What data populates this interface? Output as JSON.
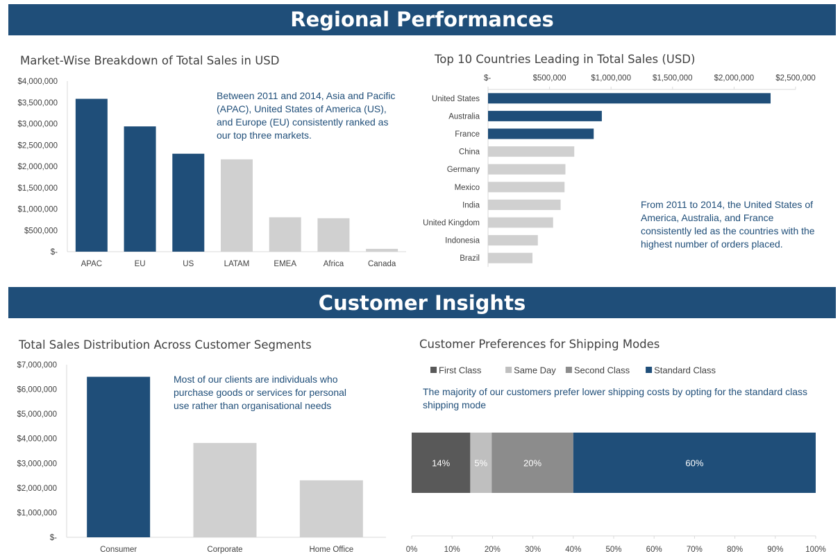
{
  "sections": {
    "regional": "Regional Performances",
    "customer": "Customer Insights"
  },
  "colors": {
    "highlight": "#1f4e79",
    "muted": "#d0d0d0",
    "first_class": "#595959",
    "same_day": "#bfbfbf",
    "second_class": "#8c8c8c",
    "standard_class": "#1f4e79"
  },
  "chart_data": [
    {
      "id": "market",
      "type": "bar",
      "title": "Market-Wise Breakdown of Total Sales in USD",
      "categories": [
        "APAC",
        "EU",
        "US",
        "LATAM",
        "EMEA",
        "Africa",
        "Canada"
      ],
      "values": [
        3585000,
        2938000,
        2297000,
        2165000,
        806000,
        784000,
        66000
      ],
      "highlighted": [
        true,
        true,
        true,
        false,
        false,
        false,
        false
      ],
      "ylim": [
        0,
        4000000
      ],
      "yticks": [
        "$-",
        "$500,000",
        "$1,000,000",
        "$1,500,000",
        "$2,000,000",
        "$2,500,000",
        "$3,000,000",
        "$3,500,000",
        "$4,000,000"
      ],
      "annotation": "Between 2011 and 2014, Asia and Pacific (APAC), United States of America (US), and Europe (EU) consistently ranked as our top three markets."
    },
    {
      "id": "countries",
      "type": "bar",
      "orientation": "horizontal",
      "title": "Top 10 Countries Leading in Total Sales (USD)",
      "categories": [
        "United States",
        "Australia",
        "France",
        "China",
        "Germany",
        "Mexico",
        "India",
        "United Kingdom",
        "Indonesia",
        "Brazil"
      ],
      "values": [
        2297000,
        925000,
        859000,
        701000,
        629000,
        622000,
        590000,
        529000,
        405000,
        361000
      ],
      "highlighted": [
        true,
        true,
        true,
        false,
        false,
        false,
        false,
        false,
        false,
        false
      ],
      "xlim": [
        0,
        2500000
      ],
      "xticks": [
        "$-",
        "$500,000",
        "$1,000,000",
        "$1,500,000",
        "$2,000,000",
        "$2,500,000"
      ],
      "annotation": "From 2011 to 2014, the United States of America, Australia, and France consistently led as the countries with the highest number of orders placed."
    },
    {
      "id": "segments",
      "type": "bar",
      "title": "Total Sales Distribution Across Customer Segments",
      "categories": [
        "Consumer",
        "Corporate",
        "Home Office"
      ],
      "values": [
        6508000,
        3825000,
        2310000
      ],
      "highlighted": [
        true,
        false,
        false
      ],
      "ylim": [
        0,
        7000000
      ],
      "yticks": [
        "$-",
        "$1,000,000",
        "$2,000,000",
        "$3,000,000",
        "$4,000,000",
        "$5,000,000",
        "$6,000,000",
        "$7,000,000"
      ],
      "annotation": "Most of our clients are individuals who purchase goods or services for personal use rather than organisational needs"
    },
    {
      "id": "shipping",
      "type": "bar",
      "orientation": "stacked-horizontal-100",
      "title": "Customer Preferences for Shipping Modes",
      "series": [
        {
          "name": "First Class",
          "value": 14.5,
          "label": "14%",
          "color": "#595959"
        },
        {
          "name": "Same Day",
          "value": 5.3,
          "label": "5%",
          "color": "#bfbfbf"
        },
        {
          "name": "Second Class",
          "value": 20.2,
          "label": "20%",
          "color": "#8c8c8c"
        },
        {
          "name": "Standard Class",
          "value": 60.0,
          "label": "60%",
          "color": "#1f4e79"
        }
      ],
      "xlim": [
        0,
        100
      ],
      "xticks": [
        "0%",
        "10%",
        "20%",
        "30%",
        "40%",
        "50%",
        "60%",
        "70%",
        "80%",
        "90%",
        "100%"
      ],
      "legend": "top",
      "annotation": "The majority of our customers prefer lower shipping costs by opting for the standard class shipping mode"
    }
  ]
}
